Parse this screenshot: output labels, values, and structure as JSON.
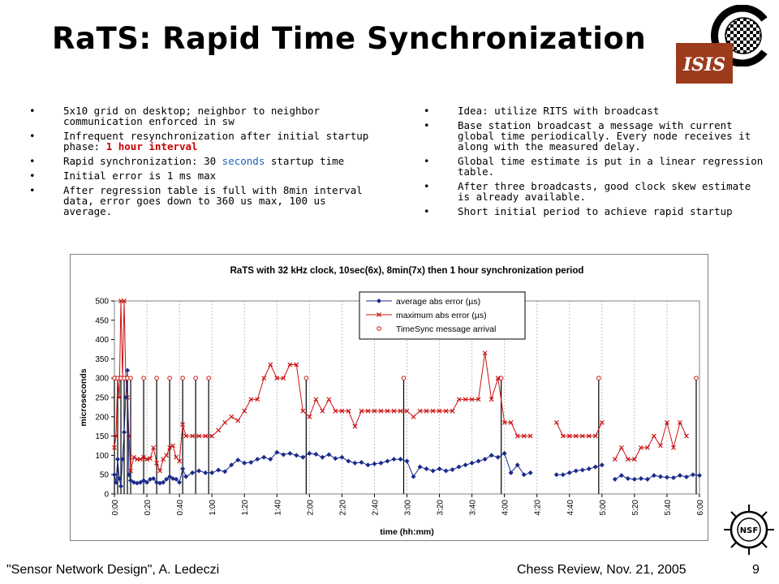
{
  "slide": {
    "title": "RaTS: Rapid Time Synchronization",
    "left_bullets": [
      {
        "parts": [
          {
            "text": "5x10 grid on desktop; neighbor to neighbor communication enforced in sw"
          }
        ]
      },
      {
        "parts": [
          {
            "text": "Infrequent resynchronization after initial startup phase: "
          },
          {
            "text": "1 hour interval",
            "style": "red"
          }
        ]
      },
      {
        "parts": [
          {
            "text": "Rapid synchronization: 30 "
          },
          {
            "text": "seconds",
            "style": "blue"
          },
          {
            "text": " startup time"
          }
        ]
      },
      {
        "parts": [
          {
            "text": "Initial error is 1 ms max"
          }
        ]
      },
      {
        "parts": [
          {
            "text": "After regression table is full with 8min interval data, error goes down to 360 us max, 100 us average."
          }
        ]
      }
    ],
    "right_bullets": [
      {
        "parts": [
          {
            "text": "Idea: utilize RITS with broadcast"
          }
        ]
      },
      {
        "parts": [
          {
            "text": "Base station broadcast a message with current global time periodically. Every node receives it along with the measured delay."
          }
        ]
      },
      {
        "parts": [
          {
            "text": "Global time estimate is put in a linear regression table."
          }
        ]
      },
      {
        "parts": [
          {
            "text": "After three broadcasts, good clock skew estimate is already available."
          }
        ]
      },
      {
        "parts": [
          {
            "text": "Short initial period to achieve rapid startup"
          }
        ]
      }
    ],
    "bullet_char": "•",
    "footer_left": "\"Sensor Network Design\", A. Ledeczi",
    "footer_center": "Chess Review, Nov. 21, 2005",
    "footer_page": "9",
    "logo_isis_text": "ISIS",
    "logo_nsf_text": "NSF"
  },
  "chart_data": {
    "type": "line",
    "title": "RaTS with 32 kHz clock, 10sec(6x), 8min(7x) then 1 hour synchronization period",
    "xlabel": "time (hh:mm)",
    "ylabel": "microseconds",
    "x_unit": "minutes",
    "xlim": [
      0,
      360
    ],
    "ylim": [
      0,
      500
    ],
    "yticks": [
      0,
      50,
      100,
      150,
      200,
      250,
      300,
      350,
      400,
      450,
      500
    ],
    "xticks": [
      {
        "v": 0,
        "label": "0:00"
      },
      {
        "v": 20,
        "label": "0:20"
      },
      {
        "v": 40,
        "label": "0:40"
      },
      {
        "v": 60,
        "label": "1:00"
      },
      {
        "v": 80,
        "label": "1:20"
      },
      {
        "v": 100,
        "label": "1:40"
      },
      {
        "v": 120,
        "label": "2:00"
      },
      {
        "v": 140,
        "label": "2:20"
      },
      {
        "v": 160,
        "label": "2:40"
      },
      {
        "v": 180,
        "label": "3:00"
      },
      {
        "v": 200,
        "label": "3:20"
      },
      {
        "v": 220,
        "label": "3:40"
      },
      {
        "v": 240,
        "label": "4:00"
      },
      {
        "v": 260,
        "label": "4:20"
      },
      {
        "v": 280,
        "label": "4:40"
      },
      {
        "v": 300,
        "label": "5:00"
      },
      {
        "v": 320,
        "label": "5:20"
      },
      {
        "v": 340,
        "label": "5:40"
      },
      {
        "v": 360,
        "label": "6:00"
      }
    ],
    "grid": "vertical",
    "legend_position": "top-right",
    "series": [
      {
        "name": "average abs error (µs)",
        "color": "#1a2a8c",
        "marker": "diamond",
        "segments": [
          [
            [
              0,
              50
            ],
            [
              1,
              30
            ],
            [
              2,
              90
            ],
            [
              3,
              40
            ],
            [
              4,
              20
            ],
            [
              5,
              90
            ],
            [
              6,
              160
            ],
            [
              7,
              250
            ],
            [
              8,
              320
            ],
            [
              9,
              50
            ],
            [
              10,
              35
            ],
            [
              12,
              30
            ],
            [
              14,
              28
            ],
            [
              16,
              30
            ],
            [
              18,
              35
            ],
            [
              20,
              30
            ],
            [
              22,
              38
            ],
            [
              24,
              40
            ],
            [
              26,
              30
            ],
            [
              28,
              28
            ],
            [
              30,
              30
            ],
            [
              32,
              38
            ],
            [
              34,
              45
            ],
            [
              36,
              40
            ],
            [
              38,
              38
            ],
            [
              40,
              30
            ],
            [
              42,
              65
            ],
            [
              44,
              45
            ],
            [
              48,
              55
            ],
            [
              52,
              60
            ],
            [
              56,
              55
            ],
            [
              60,
              55
            ],
            [
              64,
              62
            ],
            [
              68,
              58
            ],
            [
              72,
              75
            ],
            [
              76,
              88
            ],
            [
              80,
              80
            ],
            [
              84,
              82
            ],
            [
              88,
              90
            ],
            [
              92,
              95
            ],
            [
              96,
              90
            ],
            [
              100,
              108
            ],
            [
              104,
              102
            ],
            [
              108,
              105
            ],
            [
              112,
              100
            ],
            [
              116,
              95
            ],
            [
              120,
              105
            ],
            [
              124,
              103
            ],
            [
              128,
              95
            ],
            [
              132,
              102
            ],
            [
              136,
              92
            ],
            [
              140,
              95
            ],
            [
              144,
              85
            ],
            [
              148,
              80
            ],
            [
              152,
              82
            ],
            [
              156,
              75
            ],
            [
              160,
              78
            ],
            [
              164,
              80
            ],
            [
              168,
              85
            ],
            [
              172,
              90
            ],
            [
              176,
              90
            ],
            [
              180,
              85
            ],
            [
              184,
              45
            ],
            [
              188,
              70
            ],
            [
              192,
              65
            ],
            [
              196,
              60
            ],
            [
              200,
              65
            ],
            [
              204,
              60
            ],
            [
              208,
              63
            ],
            [
              212,
              70
            ],
            [
              216,
              75
            ],
            [
              220,
              80
            ],
            [
              224,
              85
            ],
            [
              228,
              90
            ],
            [
              232,
              100
            ],
            [
              236,
              95
            ],
            [
              240,
              105
            ],
            [
              244,
              55
            ],
            [
              248,
              75
            ],
            [
              252,
              50
            ],
            [
              256,
              55
            ]
          ],
          [
            [
              272,
              50
            ],
            [
              276,
              50
            ],
            [
              280,
              55
            ],
            [
              284,
              60
            ],
            [
              288,
              62
            ],
            [
              292,
              65
            ],
            [
              296,
              70
            ],
            [
              300,
              75
            ]
          ],
          [
            [
              308,
              38
            ],
            [
              312,
              48
            ],
            [
              316,
              40
            ],
            [
              320,
              38
            ],
            [
              324,
              40
            ],
            [
              328,
              38
            ],
            [
              332,
              48
            ],
            [
              336,
              45
            ],
            [
              340,
              43
            ],
            [
              344,
              42
            ],
            [
              348,
              48
            ],
            [
              352,
              44
            ],
            [
              356,
              50
            ],
            [
              360,
              48
            ]
          ]
        ]
      },
      {
        "name": "maximum abs error (µs)",
        "color": "#cc1111",
        "marker": "x",
        "segments": [
          [
            [
              0,
              120
            ],
            [
              1,
              150
            ],
            [
              2,
              300
            ],
            [
              3,
              250
            ],
            [
              4,
              500
            ],
            [
              5,
              300
            ],
            [
              6,
              500
            ],
            [
              7,
              300
            ],
            [
              8,
              250
            ],
            [
              9,
              150
            ],
            [
              10,
              60
            ],
            [
              12,
              95
            ],
            [
              14,
              90
            ],
            [
              16,
              90
            ],
            [
              18,
              95
            ],
            [
              20,
              90
            ],
            [
              22,
              92
            ],
            [
              24,
              120
            ],
            [
              26,
              80
            ],
            [
              28,
              60
            ],
            [
              30,
              90
            ],
            [
              32,
              100
            ],
            [
              34,
              120
            ],
            [
              36,
              125
            ],
            [
              38,
              95
            ],
            [
              40,
              85
            ],
            [
              42,
              180
            ],
            [
              44,
              150
            ],
            [
              48,
              150
            ],
            [
              52,
              150
            ],
            [
              56,
              150
            ],
            [
              60,
              150
            ],
            [
              64,
              165
            ],
            [
              68,
              185
            ],
            [
              72,
              200
            ],
            [
              76,
              190
            ],
            [
              80,
              215
            ],
            [
              84,
              245
            ],
            [
              88,
              245
            ],
            [
              92,
              300
            ],
            [
              96,
              335
            ],
            [
              100,
              300
            ],
            [
              104,
              300
            ],
            [
              108,
              335
            ],
            [
              112,
              335
            ],
            [
              116,
              215
            ],
            [
              120,
              200
            ],
            [
              124,
              245
            ],
            [
              128,
              215
            ],
            [
              132,
              245
            ],
            [
              136,
              215
            ],
            [
              140,
              215
            ],
            [
              144,
              215
            ],
            [
              148,
              175
            ],
            [
              152,
              215
            ],
            [
              156,
              215
            ],
            [
              160,
              215
            ],
            [
              164,
              215
            ],
            [
              168,
              215
            ],
            [
              172,
              215
            ],
            [
              176,
              215
            ],
            [
              180,
              215
            ],
            [
              184,
              200
            ],
            [
              188,
              215
            ],
            [
              192,
              215
            ],
            [
              196,
              215
            ],
            [
              200,
              215
            ],
            [
              204,
              215
            ],
            [
              208,
              215
            ],
            [
              212,
              245
            ],
            [
              216,
              245
            ],
            [
              220,
              245
            ],
            [
              224,
              245
            ],
            [
              228,
              365
            ],
            [
              232,
              245
            ],
            [
              236,
              300
            ],
            [
              240,
              185
            ],
            [
              244,
              185
            ],
            [
              248,
              150
            ],
            [
              252,
              150
            ],
            [
              256,
              150
            ]
          ],
          [
            [
              272,
              185
            ],
            [
              276,
              150
            ],
            [
              280,
              150
            ],
            [
              284,
              150
            ],
            [
              288,
              150
            ],
            [
              292,
              150
            ],
            [
              296,
              150
            ],
            [
              300,
              185
            ]
          ],
          [
            [
              308,
              90
            ],
            [
              312,
              120
            ],
            [
              316,
              90
            ],
            [
              320,
              90
            ],
            [
              324,
              120
            ],
            [
              328,
              120
            ],
            [
              332,
              150
            ],
            [
              336,
              125
            ],
            [
              340,
              185
            ],
            [
              344,
              120
            ],
            [
              348,
              185
            ],
            [
              352,
              150
            ]
          ]
        ]
      },
      {
        "name": "TimeSync message arrival",
        "color": "#cc1111",
        "marker": "circle-open",
        "values": [
          [
            0,
            300
          ],
          [
            2,
            300
          ],
          [
            4,
            300
          ],
          [
            6,
            300
          ],
          [
            8,
            300
          ],
          [
            10,
            300
          ],
          [
            18,
            300
          ],
          [
            26,
            300
          ],
          [
            34,
            300
          ],
          [
            42,
            300
          ],
          [
            50,
            300
          ],
          [
            58,
            300
          ],
          [
            118,
            300
          ],
          [
            178,
            300
          ],
          [
            238,
            300
          ],
          [
            298,
            300
          ],
          [
            358,
            300
          ]
        ]
      }
    ]
  }
}
